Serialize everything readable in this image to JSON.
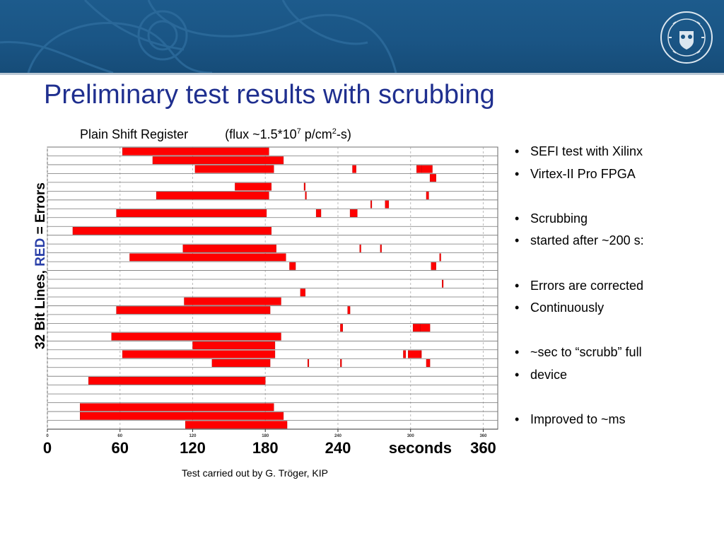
{
  "slide": {
    "title": "Preliminary test results with scrubbing",
    "subtitle_left": "Plain Shift Register",
    "subtitle_flux_prefix": "(flux ~1.5*10",
    "subtitle_flux_exp": "7",
    "subtitle_flux_mid": " p/cm",
    "subtitle_flux_exp2": "2",
    "subtitle_flux_suffix": "-s)",
    "ylabel_prefix": "32 Bit Lines, ",
    "ylabel_red": "RED",
    "ylabel_suffix": " = Errors",
    "credit": "Test carried out by G. Tröger, KIP",
    "bullets": [
      "SEFI test with Xilinx",
      "Virtex-II Pro FPGA",
      "",
      "Scrubbing",
      "started after ~200 s:",
      "",
      "Errors are corrected",
      "Continuously",
      "",
      "~sec to “scrubb” full",
      "device",
      "",
      "Improved to ~ms"
    ],
    "bullet_glyph": "•",
    "seal_icon": "university-seal-icon",
    "colors": {
      "title": "#1f2f8f",
      "banner": "#1a5585",
      "error": "#ff0000",
      "ylabel_red": "#2a3fa8"
    }
  },
  "chart_data": {
    "type": "timeline",
    "bit_lines": 32,
    "xlim": [
      0,
      372
    ],
    "small_tick_labels": [
      "0",
      "60",
      "120",
      "180",
      "240",
      "300",
      "360"
    ],
    "small_tick_values": [
      0,
      60,
      120,
      180,
      240,
      300,
      360
    ],
    "big_tick_labels": [
      "0",
      "60",
      "120",
      "180",
      "240",
      "seconds",
      "360"
    ],
    "big_tick_values": [
      0,
      60,
      120,
      180,
      240,
      308,
      360
    ],
    "error_color": "#ff0000",
    "rows": [
      [
        [
          62,
          183
        ]
      ],
      [
        [
          87,
          195
        ]
      ],
      [
        [
          122,
          187
        ],
        [
          252,
          255
        ],
        [
          305,
          309
        ],
        [
          309,
          318
        ]
      ],
      [
        [
          316,
          321
        ]
      ],
      [
        [
          155,
          185
        ],
        [
          212,
          213
        ]
      ],
      [
        [
          90,
          183
        ],
        [
          213,
          214
        ],
        [
          313,
          315
        ]
      ],
      [
        [
          267,
          268
        ],
        [
          279,
          282
        ]
      ],
      [
        [
          57,
          181
        ],
        [
          222,
          226
        ],
        [
          250,
          256
        ]
      ],
      [],
      [
        [
          21,
          185
        ]
      ],
      [],
      [
        [
          112,
          189
        ],
        [
          258,
          259
        ],
        [
          275,
          276
        ]
      ],
      [
        [
          68,
          197
        ],
        [
          324,
          325
        ]
      ],
      [
        [
          200,
          205
        ],
        [
          317,
          321
        ]
      ],
      [],
      [
        [
          326,
          327
        ]
      ],
      [
        [
          209,
          213
        ]
      ],
      [
        [
          113,
          193
        ]
      ],
      [
        [
          57,
          184
        ],
        [
          248,
          250
        ]
      ],
      [],
      [
        [
          242,
          244
        ],
        [
          302,
          308
        ],
        [
          308,
          316
        ]
      ],
      [
        [
          53,
          193
        ]
      ],
      [
        [
          120,
          188
        ]
      ],
      [
        [
          62,
          188
        ],
        [
          294,
          296
        ],
        [
          298,
          308
        ],
        [
          308,
          309
        ]
      ],
      [
        [
          136,
          184
        ],
        [
          215,
          216
        ],
        [
          242,
          243
        ],
        [
          313,
          316
        ]
      ],
      [],
      [
        [
          34,
          180
        ]
      ],
      [],
      [],
      [
        [
          27,
          187
        ]
      ],
      [
        [
          27,
          195
        ]
      ],
      [
        [
          114,
          198
        ]
      ]
    ]
  }
}
